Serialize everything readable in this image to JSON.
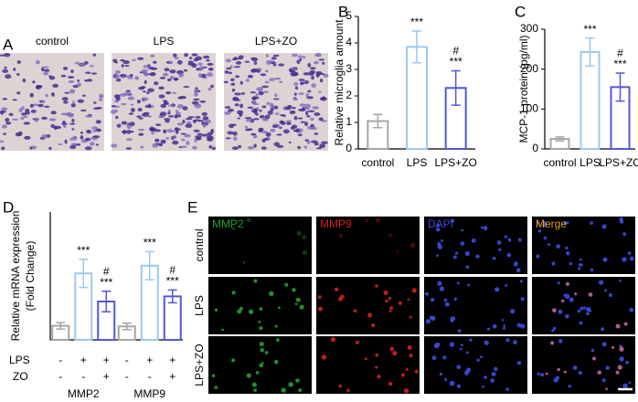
{
  "panel_a": {
    "label": "A",
    "titles": [
      "control",
      "LPS",
      "LPS+ZO"
    ]
  },
  "chart_data": [
    {
      "type": "bar",
      "panel_label": "B",
      "ylabel": "Relative microglia amount",
      "categories": [
        "control",
        "LPS",
        "LPS+ZO"
      ],
      "values": [
        1.05,
        3.85,
        2.3
      ],
      "errors": [
        0.25,
        0.6,
        0.65
      ],
      "colors": [
        "#a6a6a6",
        "#9cc8f0",
        "#5656d8"
      ],
      "annotations": [
        null,
        [
          "***"
        ],
        [
          "#",
          "***"
        ]
      ],
      "ylim": [
        0,
        5
      ],
      "yticks": [
        0,
        1,
        2,
        3,
        4,
        5
      ]
    },
    {
      "type": "bar",
      "panel_label": "C",
      "ylabel": "MCP-1 protein (pg/ml)",
      "categories": [
        "control",
        "LPS",
        "LPS+ZO"
      ],
      "values": [
        25,
        243,
        155
      ],
      "errors": [
        5,
        35,
        35
      ],
      "colors": [
        "#a6a6a6",
        "#9cc8f0",
        "#5656d8"
      ],
      "annotations": [
        null,
        [
          "***"
        ],
        [
          "#",
          "***"
        ]
      ],
      "ylim": [
        0,
        300
      ],
      "yticks": [
        0,
        100,
        200,
        300
      ]
    },
    {
      "type": "grouped_bar",
      "panel_label": "D",
      "ylabel": [
        "Relative mRNA expression",
        "(Fold Change)"
      ],
      "categories": [
        "MMP2",
        "MMP9"
      ],
      "series": [
        {
          "color": "#a6a6a6",
          "values": [
            1.1,
            1.05
          ],
          "errors": [
            0.25,
            0.25
          ],
          "annotations": [
            null,
            null
          ]
        },
        {
          "color": "#9cc8f0",
          "values": [
            5.2,
            5.8
          ],
          "errors": [
            1.1,
            1.1
          ],
          "annotations": [
            [
              "***"
            ],
            [
              "***"
            ]
          ]
        },
        {
          "color": "#5656d8",
          "values": [
            3.0,
            3.4
          ],
          "errors": [
            0.8,
            0.5
          ],
          "annotations": [
            [
              "#",
              "***"
            ],
            [
              "#",
              "***"
            ]
          ]
        }
      ],
      "treatments": [
        {
          "label": "LPS",
          "signs": [
            "-",
            "+",
            "+",
            "-",
            "+",
            "+"
          ]
        },
        {
          "label": "ZO",
          "signs": [
            "-",
            "-",
            "+",
            "-",
            "-",
            "+"
          ]
        }
      ],
      "ylim": [
        0,
        10
      ]
    }
  ],
  "panel_e": {
    "label": "E",
    "rows": [
      "control",
      "LPS",
      "LPS+ZO"
    ],
    "columns": [
      {
        "label": "MMP2",
        "color": "#22a030"
      },
      {
        "label": "MMP9",
        "color": "#d02020"
      },
      {
        "label": "DAPI",
        "color": "#3a4ce0"
      },
      {
        "label": "Merge",
        "color": "#e8a020"
      }
    ]
  }
}
